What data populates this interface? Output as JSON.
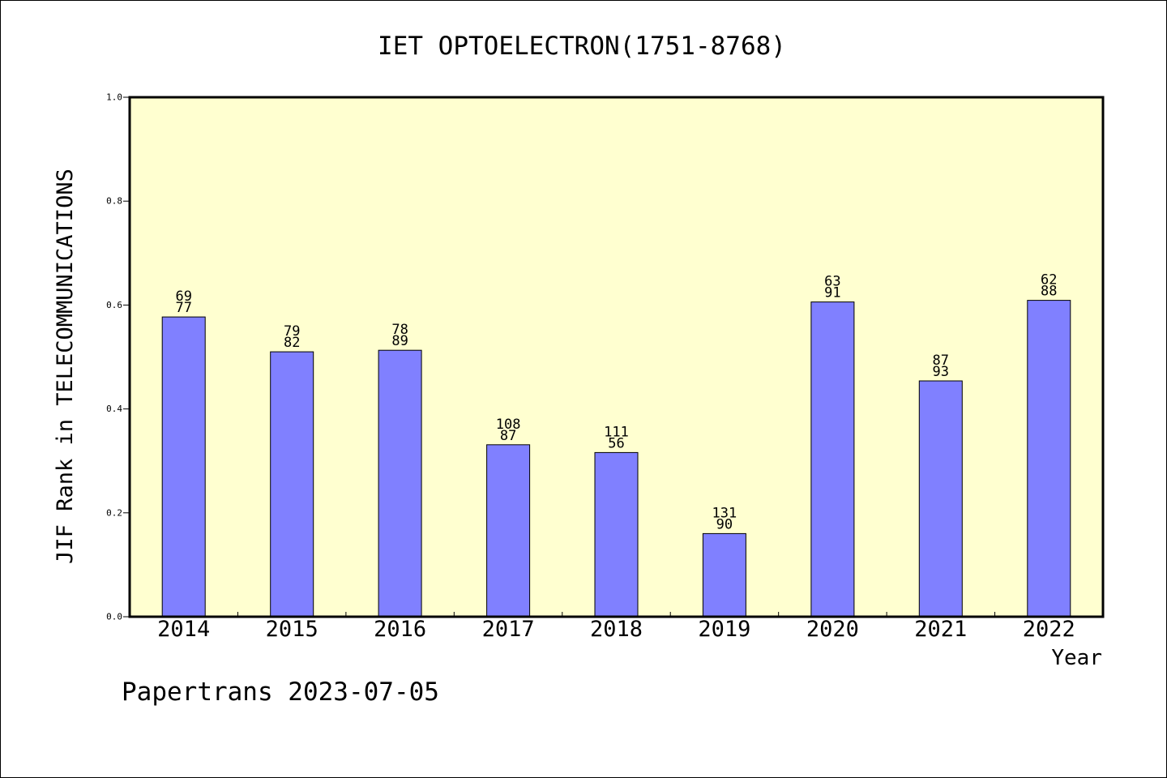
{
  "footer": {
    "credit": "Papertrans 2023-07-05"
  },
  "chart_data": {
    "type": "bar",
    "title": "IET OPTOELECTRON(1751-8768)",
    "xlabel": "Year",
    "ylabel": "JIF Rank in TELECOMMUNICATIONS",
    "ylim": [
      0.0,
      1.0
    ],
    "yticks": [
      "0.0",
      "0.2",
      "0.4",
      "0.6",
      "0.8",
      "1.0"
    ],
    "grid": false,
    "categories": [
      "2014",
      "2015",
      "2016",
      "2017",
      "2018",
      "2019",
      "2020",
      "2021",
      "2022"
    ],
    "values": [
      0.577,
      0.51,
      0.513,
      0.331,
      0.316,
      0.16,
      0.606,
      0.454,
      0.609
    ],
    "rank_labels": [
      [
        "69",
        "77"
      ],
      [
        "79",
        "82"
      ],
      [
        "78",
        "89"
      ],
      [
        "108",
        "87"
      ],
      [
        "111",
        "56"
      ],
      [
        "131",
        "90"
      ],
      [
        "63",
        "91"
      ],
      [
        "87",
        "93"
      ],
      [
        "62",
        "88"
      ]
    ],
    "colors": {
      "plot_bg": "#ffffd0",
      "bar_fill": "#8080ff",
      "bar_stroke": "#000000"
    }
  }
}
